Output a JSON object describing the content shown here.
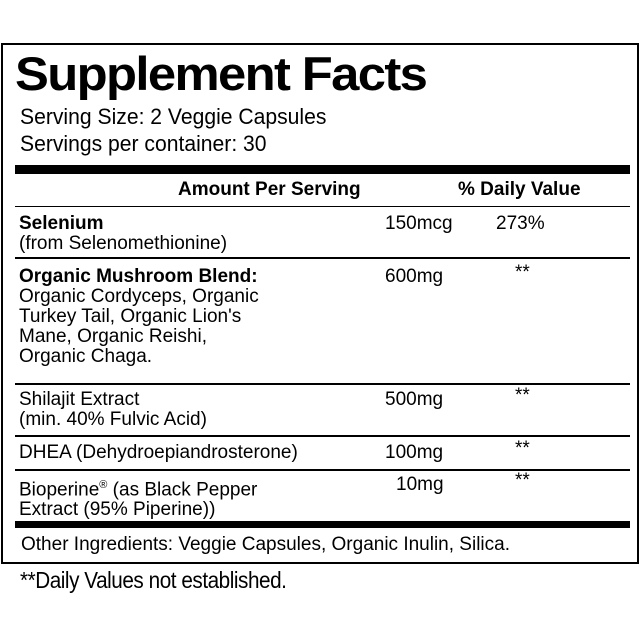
{
  "title": "Supplement Facts",
  "serving_size": "Serving Size: 2 Veggie Capsules",
  "servings_per_container": "Servings per container: 30",
  "header": {
    "amount": "Amount Per Serving",
    "daily_value": "% Daily Value"
  },
  "rows": [
    {
      "name": "Selenium",
      "detail": "(from Selenomethionine)",
      "amount": "150mcg",
      "dv": "273%"
    },
    {
      "name": "Organic Mushroom Blend:",
      "detail": [
        "Organic Cordyceps, Organic",
        "Turkey Tail, Organic Lion's",
        "Mane, Organic Reishi,",
        "Organic Chaga."
      ],
      "amount": "600mg",
      "dv": "**"
    },
    {
      "name": "Shilajit Extract",
      "detail": "(min. 40% Fulvic Acid)",
      "amount": "500mg",
      "dv": "**"
    },
    {
      "name": "DHEA (Dehydroepiandrosterone)",
      "amount": "100mg",
      "dv": "**"
    },
    {
      "name": "Bioperine",
      "name_mark": "®",
      "name_rest": " (as Black Pepper",
      "detail": "Extract (95% Piperine))",
      "amount": "10mg",
      "dv": "**"
    }
  ],
  "other_ingredients": "Other Ingredients: Veggie Capsules, Organic Inulin, Silica.",
  "footnote": "**Daily Values not established."
}
